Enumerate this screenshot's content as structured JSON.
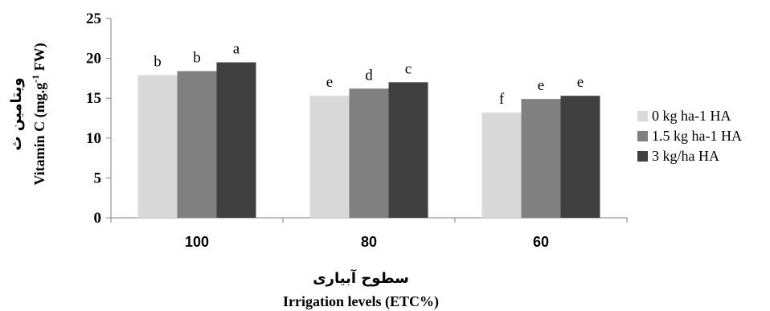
{
  "chart_data": {
    "type": "bar",
    "categories": [
      "100",
      "80",
      "60"
    ],
    "series": [
      {
        "name": "0 kg ha-1 HA",
        "color": "#d9d9d9",
        "values": [
          17.9,
          15.3,
          13.2
        ],
        "letters": [
          "b",
          "e",
          "f"
        ]
      },
      {
        "name": "1.5 kg ha-1 HA",
        "color": "#808080",
        "values": [
          18.4,
          16.2,
          14.9
        ],
        "letters": [
          "b",
          "d",
          "e"
        ]
      },
      {
        "name": "3 kg/ha HA",
        "color": "#404040",
        "values": [
          19.5,
          17.0,
          15.3
        ],
        "letters": [
          "a",
          "c",
          "e"
        ]
      }
    ],
    "ylim": [
      0,
      25
    ],
    "yticks": [
      "0",
      "5",
      "10",
      "15",
      "20",
      "25"
    ],
    "xlabel_fa": "سطوح آبیاری",
    "xlabel": "Irrigation levels (ETC%)",
    "ylabel_fa": "ویتامین ث",
    "ylabel_main": "Vitamin C (mg.g",
    "ylabel_sup": "-1",
    "ylabel_end": " FW)",
    "grid": false,
    "legend_position": "right"
  }
}
